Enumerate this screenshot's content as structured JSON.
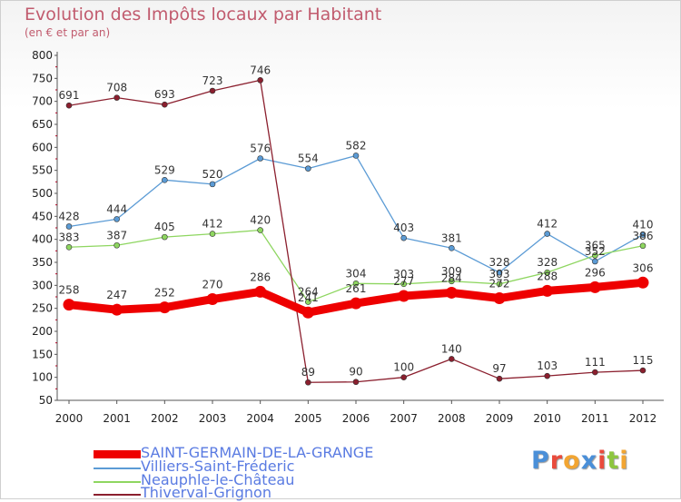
{
  "header": {
    "title": "Evolution des Impôts locaux par Habitant",
    "subtitle": "(en € et par an)"
  },
  "colors": {
    "title": "#c15b6e",
    "legend_text": "#5a7be2"
  },
  "logo": {
    "text": "Proxiti",
    "letters": [
      {
        "char": "P",
        "color": "#4a8fd8"
      },
      {
        "char": "r",
        "color": "#e94b3c"
      },
      {
        "char": "o",
        "color": "#f2a532"
      },
      {
        "char": "x",
        "color": "#4a8fd8"
      },
      {
        "char": "i",
        "color": "#e94b3c"
      },
      {
        "char": "t",
        "color": "#8dc63f"
      },
      {
        "char": "i",
        "color": "#f2a532"
      }
    ]
  },
  "chart_data": {
    "type": "line",
    "title": "Evolution des Impôts locaux par Habitant",
    "subtitle": "(en € et par an)",
    "xlabel": "",
    "ylabel": "",
    "ylim": [
      50,
      800
    ],
    "yticks": [
      50,
      100,
      150,
      200,
      250,
      300,
      350,
      400,
      450,
      500,
      550,
      600,
      650,
      700,
      750,
      800
    ],
    "grid": false,
    "legend_position": "bottom-left",
    "x": [
      "2000",
      "2001",
      "2002",
      "2003",
      "2004",
      "2005",
      "2006",
      "2007",
      "2008",
      "2009",
      "2010",
      "2011",
      "2012"
    ],
    "series": [
      {
        "name": "SAINT-GERMAIN-DE-LA-GRANGE",
        "color": "#ee0000",
        "emphasis": true,
        "values": [
          258,
          247,
          252,
          270,
          286,
          241,
          261,
          277,
          284,
          272,
          288,
          296,
          306
        ],
        "labels": [
          "258",
          "247",
          "252",
          "270",
          "286",
          "241",
          "261",
          "277",
          "284",
          "272",
          "288",
          "296",
          "306"
        ]
      },
      {
        "name": "Villiers-Saint-Fréderic",
        "color": "#5b9bd5",
        "values": [
          428,
          444,
          529,
          520,
          576,
          554,
          582,
          403,
          381,
          328,
          412,
          352,
          410
        ],
        "labels": [
          "428",
          "444",
          "529",
          "520",
          "576",
          "554",
          "582",
          "403",
          "381",
          "328",
          "412",
          "352",
          "410"
        ]
      },
      {
        "name": "Neauphle-le-Château",
        "color": "#8ed660",
        "values": [
          383,
          387,
          405,
          412,
          420,
          264,
          304,
          303,
          309,
          303,
          328,
          365,
          386
        ],
        "labels": [
          "383",
          "387",
          "405",
          "412",
          "420",
          "264",
          "304",
          "303",
          "309",
          "303",
          "328",
          "365",
          "386"
        ]
      },
      {
        "name": "Thiverval-Grignon",
        "color": "#8b1f2e",
        "values": [
          691,
          708,
          693,
          723,
          746,
          89,
          90,
          100,
          140,
          97,
          103,
          111,
          115
        ],
        "labels": [
          "691",
          "708",
          "693",
          "723",
          "746",
          "89",
          "90",
          "100",
          "140",
          "97",
          "103",
          "111",
          "115"
        ]
      }
    ]
  }
}
